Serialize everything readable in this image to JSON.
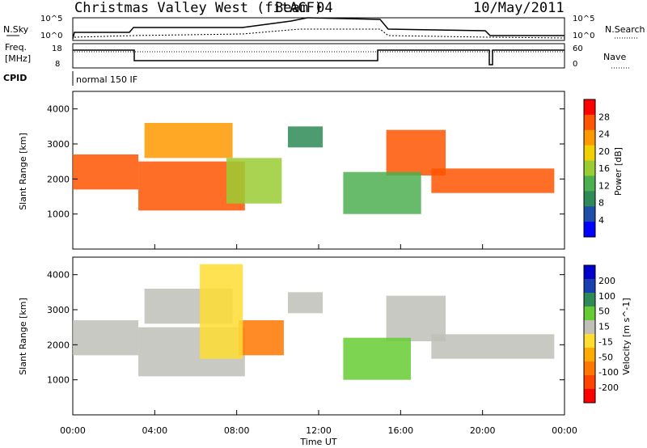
{
  "header": {
    "title": "Christmas Valley West (fitACF)",
    "beam": "Beam 04",
    "date": "10/May/2011"
  },
  "noise_panel": {
    "left_label": "N.Sky",
    "right_label": "N.Search",
    "left_ticks": [
      "10^5",
      "10^0"
    ],
    "right_ticks": [
      "10^5",
      "10^0"
    ]
  },
  "freq_panel": {
    "left_label_1": "Freq.",
    "left_label_2": "[MHz]",
    "right_label": "Nave",
    "left_ticks": [
      "18",
      "8"
    ],
    "right_ticks": [
      "60",
      "0"
    ]
  },
  "cpid": {
    "label": "CPID",
    "value": "normal 150 IF"
  },
  "colors": {
    "power": [
      "#0000ff",
      "#1f4fa8",
      "#2e8b57",
      "#4caf50",
      "#9acd32",
      "#f0d000",
      "#ff9900",
      "#ff5500",
      "#ff0000"
    ],
    "velocity": [
      "#ff0000",
      "#ff4400",
      "#ff7700",
      "#ffaa00",
      "#ffdd33",
      "#c0c0b8",
      "#66cc33",
      "#2e8b57",
      "#1a3fb0",
      "#0000cc"
    ]
  },
  "x_axis": {
    "label": "Time UT",
    "ticks": [
      "00:00",
      "04:00",
      "08:00",
      "12:00",
      "16:00",
      "20:00",
      "00:00"
    ]
  },
  "chart_data": [
    {
      "type": "heatmap",
      "title": "",
      "xlabel": "",
      "ylabel": "Slant Range [km]",
      "x_range_hours": [
        0,
        24
      ],
      "ylim": [
        0,
        4500
      ],
      "yticks": [
        "4000",
        "3000",
        "2000",
        "1000"
      ],
      "colorbar": {
        "label": "Power [dB]",
        "ticks": [
          "28",
          "24",
          "20",
          "16",
          "12",
          "8",
          "4"
        ],
        "range": [
          0,
          30
        ]
      },
      "regions": [
        {
          "name": "night-band",
          "t": [
            0,
            3.2
          ],
          "r": [
            1700,
            2700
          ],
          "value": 24
        },
        {
          "name": "rising-arc",
          "t": [
            3.2,
            8.4
          ],
          "r": [
            1100,
            2500
          ],
          "value": 26
        },
        {
          "name": "upper-arc",
          "t": [
            3.5,
            7.8
          ],
          "r": [
            2600,
            3600
          ],
          "value": 22
        },
        {
          "name": "morning-echo",
          "t": [
            7.5,
            10.2
          ],
          "r": [
            1300,
            2600
          ],
          "value": 16
        },
        {
          "name": "noon-echo",
          "t": [
            10.5,
            12.2
          ],
          "r": [
            2900,
            3500
          ],
          "value": 8
        },
        {
          "name": "afternoon-band",
          "t": [
            15.3,
            18.2
          ],
          "r": [
            2100,
            3400
          ],
          "value": 26
        },
        {
          "name": "evening-band",
          "t": [
            17.5,
            23.5
          ],
          "r": [
            1600,
            2300
          ],
          "value": 24
        },
        {
          "name": "decline-echo",
          "t": [
            13.2,
            17.0
          ],
          "r": [
            1000,
            2200
          ],
          "value": 12
        }
      ]
    },
    {
      "type": "heatmap",
      "title": "",
      "xlabel": "Time UT",
      "ylabel": "Slant Range [km]",
      "x_range_hours": [
        0,
        24
      ],
      "ylim": [
        0,
        4500
      ],
      "yticks": [
        "4000",
        "3000",
        "2000",
        "1000"
      ],
      "colorbar": {
        "label": "Velocity [m s^-1]",
        "ticks": [
          "200",
          "100",
          "50",
          "15",
          "-15",
          "-50",
          "-100",
          "-200"
        ],
        "range": [
          -250,
          250
        ]
      },
      "regions": [
        {
          "name": "night-band",
          "t": [
            0,
            3.2
          ],
          "r": [
            1700,
            2700
          ],
          "value": 0
        },
        {
          "name": "rising-arc",
          "t": [
            3.2,
            8.4
          ],
          "r": [
            1100,
            2500
          ],
          "value": 0
        },
        {
          "name": "upper-arc",
          "t": [
            3.5,
            7.8
          ],
          "r": [
            2600,
            3600
          ],
          "value": 0
        },
        {
          "name": "flow-patch",
          "t": [
            8.1,
            10.3
          ],
          "r": [
            1700,
            2700
          ],
          "value": -120
        },
        {
          "name": "arc-edge",
          "t": [
            6.2,
            8.3
          ],
          "r": [
            1600,
            4300
          ],
          "value": -40
        },
        {
          "name": "noon-echo",
          "t": [
            10.5,
            12.2
          ],
          "r": [
            2900,
            3500
          ],
          "value": 40
        },
        {
          "name": "afternoon-band",
          "t": [
            15.3,
            18.2
          ],
          "r": [
            2100,
            3400
          ],
          "value": 0
        },
        {
          "name": "evening-band",
          "t": [
            17.5,
            23.5
          ],
          "r": [
            1600,
            2300
          ],
          "value": 0
        },
        {
          "name": "decline-echo",
          "t": [
            13.2,
            16.5
          ],
          "r": [
            1000,
            2200
          ],
          "value": 50
        }
      ]
    }
  ]
}
